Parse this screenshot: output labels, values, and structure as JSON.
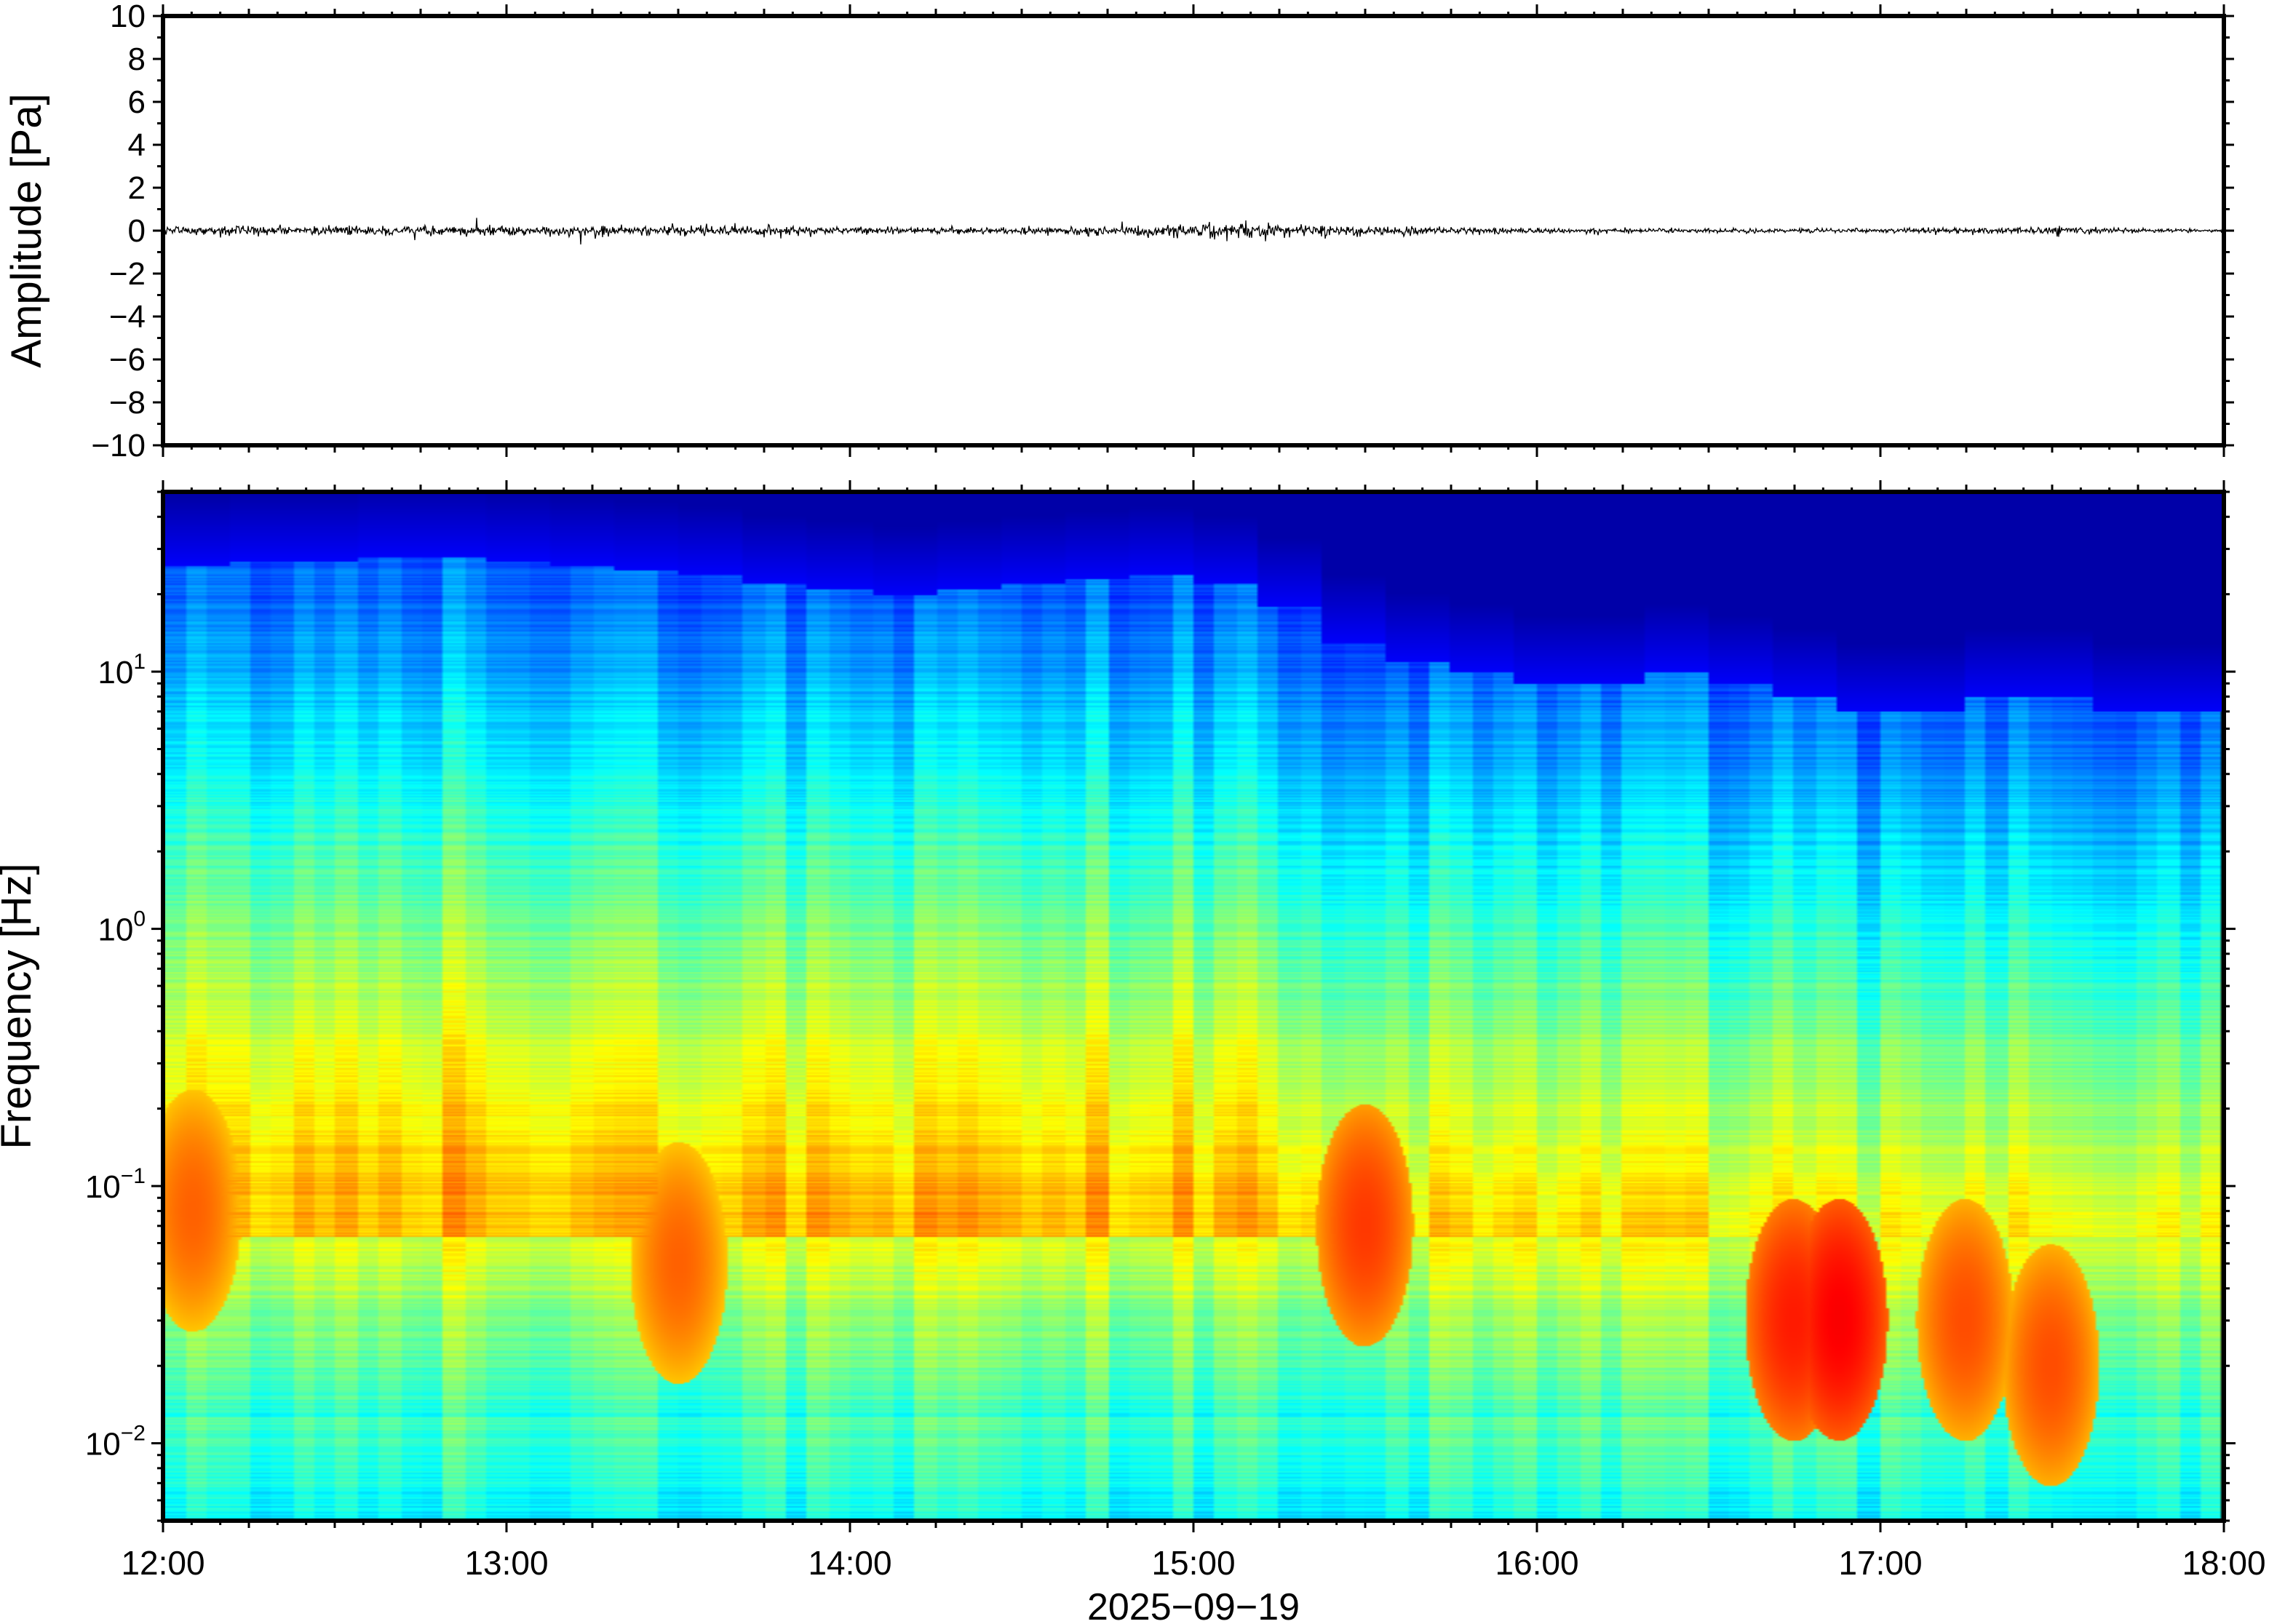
{
  "chart_data": [
    {
      "type": "line",
      "panel": "waveform",
      "ylabel": "Amplitude [Pa]",
      "ylim": [
        -10,
        10
      ],
      "yticks": [
        10,
        8,
        6,
        4,
        2,
        0,
        -2,
        -4,
        -6,
        -8,
        -10
      ],
      "ytick_labels": [
        "10",
        "8",
        "6",
        "4",
        "2",
        "0",
        "−2",
        "−4",
        "−6",
        "−8",
        "−10"
      ],
      "xlim": [
        "12:00",
        "18:00"
      ],
      "series": [
        {
          "color": "#000000",
          "x": [
            "12:00",
            "12:15",
            "12:30",
            "12:45",
            "13:00",
            "13:15",
            "13:30",
            "13:45",
            "14:00",
            "14:15",
            "14:30",
            "14:45",
            "15:00",
            "15:07",
            "15:15",
            "15:30",
            "15:45",
            "16:00",
            "16:15",
            "16:30",
            "16:45",
            "17:00",
            "17:15",
            "17:30",
            "17:45",
            "18:00"
          ],
          "envelope": [
            0.3,
            0.35,
            0.3,
            0.28,
            0.3,
            0.35,
            0.32,
            0.3,
            0.2,
            0.2,
            0.25,
            0.3,
            0.45,
            0.55,
            0.4,
            0.35,
            0.2,
            0.2,
            0.15,
            0.15,
            0.15,
            0.15,
            0.2,
            0.3,
            0.12,
            0.08
          ]
        }
      ]
    },
    {
      "type": "heatmap",
      "panel": "spectrogram",
      "ylabel": "Frequency [Hz]",
      "xlabel": "2025−09−19",
      "yscale": "log",
      "ylim": [
        0.005,
        50
      ],
      "yticks": [
        0.01,
        0.1,
        1,
        10
      ],
      "ytick_labels": [
        {
          "base": "10",
          "exp": "−2"
        },
        {
          "base": "10",
          "exp": "−1"
        },
        {
          "base": "10",
          "exp": "0"
        },
        {
          "base": "10",
          "exp": "1"
        }
      ],
      "xlim": [
        "12:00",
        "18:00"
      ],
      "xticks": [
        "12:00",
        "13:00",
        "14:00",
        "15:00",
        "16:00",
        "17:00",
        "18:00"
      ],
      "colormap": "jet",
      "cutoff_hz": [
        26,
        27,
        27,
        28,
        28,
        27,
        26,
        25,
        24,
        22,
        21,
        20,
        21,
        22,
        23,
        24,
        22,
        18,
        13,
        11,
        10,
        9,
        9,
        10,
        9,
        8,
        7,
        7,
        8,
        8,
        7,
        7
      ],
      "hotspots": [
        {
          "time": "15:30",
          "freq_hz": 0.07,
          "intensity": 0.82
        },
        {
          "time": "16:45",
          "freq_hz": 0.03,
          "intensity": 0.85
        },
        {
          "time": "16:53",
          "freq_hz": 0.03,
          "intensity": 0.88
        },
        {
          "time": "17:15",
          "freq_hz": 0.03,
          "intensity": 0.8
        },
        {
          "time": "17:30",
          "freq_hz": 0.02,
          "intensity": 0.8
        },
        {
          "time": "13:30",
          "freq_hz": 0.05,
          "intensity": 0.78
        },
        {
          "time": "12:05",
          "freq_hz": 0.08,
          "intensity": 0.78
        }
      ],
      "colors": {
        "high": "#ff8c00",
        "low": "#000a78"
      }
    }
  ],
  "tick_labels": {
    "x": [
      "12:00",
      "13:00",
      "14:00",
      "15:00",
      "16:00",
      "17:00",
      "18:00"
    ]
  }
}
